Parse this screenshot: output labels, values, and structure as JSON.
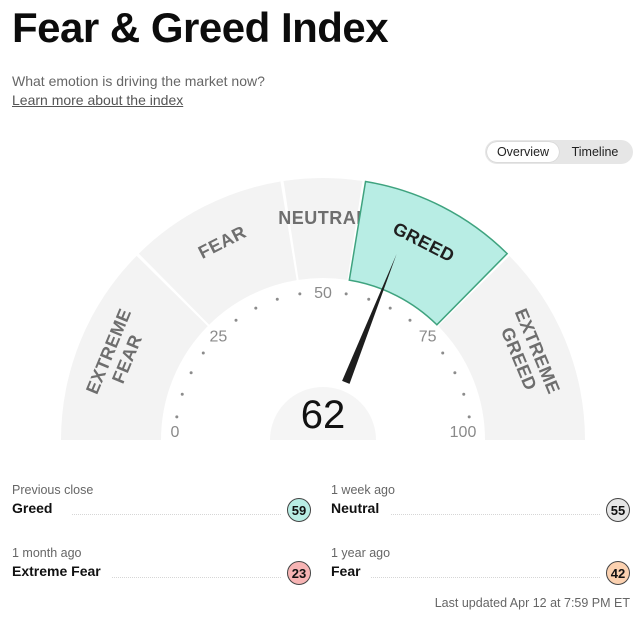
{
  "header": {
    "title": "Fear & Greed Index",
    "subtitle": "What emotion is driving the market now?",
    "learn_more": "Learn more about the index"
  },
  "tabs": [
    {
      "label": "Overview",
      "active": true
    },
    {
      "label": "Timeline",
      "active": false
    }
  ],
  "gauge": {
    "score": 62,
    "min": 0,
    "max": 100,
    "tick_labels": [
      "0",
      "25",
      "50",
      "75",
      "100"
    ],
    "active_segment": 3,
    "active_color": "#b8ede4",
    "active_border": "#3fa37f",
    "segments": [
      {
        "lines": [
          "EXTREME",
          "FEAR"
        ],
        "from": 0,
        "to": 25
      },
      {
        "lines": [
          "FEAR"
        ],
        "from": 25,
        "to": 45
      },
      {
        "lines": [
          "NEUTRAL"
        ],
        "from": 45,
        "to": 55
      },
      {
        "lines": [
          "GREED"
        ],
        "from": 55,
        "to": 75
      },
      {
        "lines": [
          "EXTREME",
          "GREED"
        ],
        "from": 75,
        "to": 100
      }
    ]
  },
  "stats": [
    {
      "label": "Previous close",
      "value": "Greed",
      "score": "59",
      "color": "#b8ede4"
    },
    {
      "label": "1 week ago",
      "value": "Neutral",
      "score": "55",
      "color": "#e6e6e6"
    },
    {
      "label": "1 month ago",
      "value": "Extreme Fear",
      "score": "23",
      "color": "#f7b4b4"
    },
    {
      "label": "1 year ago",
      "value": "Fear",
      "score": "42",
      "color": "#fbd1b0"
    }
  ],
  "last_updated": "Last updated Apr 12 at 7:59 PM ET"
}
